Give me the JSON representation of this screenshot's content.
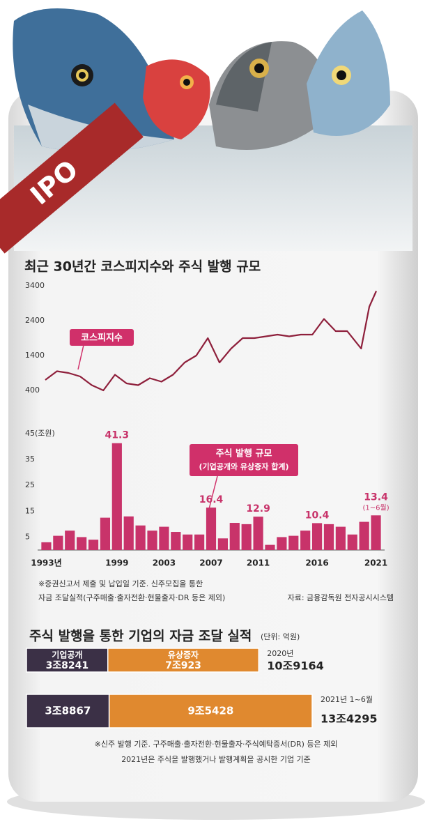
{
  "badge": "IPO",
  "title": "최근 30년간 코스피지수와 주식 발행 규모",
  "chart_data": [
    {
      "type": "line",
      "label": "코스피지수",
      "color": "#8e1f3b",
      "x": [
        1993,
        1994,
        1995,
        1996,
        1997,
        1998,
        1999,
        2000,
        2001,
        2002,
        2003,
        2004,
        2005,
        2006,
        2007,
        2008,
        2009,
        2010,
        2011,
        2012,
        2013,
        2014,
        2015,
        2016,
        2017,
        2018,
        2019,
        2020.2,
        2020.9,
        2021.5
      ],
      "values": [
        700,
        950,
        900,
        800,
        550,
        400,
        850,
        600,
        550,
        750,
        650,
        850,
        1200,
        1400,
        1900,
        1200,
        1600,
        1900,
        1900,
        1950,
        2000,
        1950,
        2000,
        2000,
        2450,
        2100,
        2100,
        1600,
        2800,
        3250
      ],
      "xlim": [
        1993,
        2021.5
      ],
      "ylim": [
        400,
        3400
      ],
      "yticks": [
        400,
        1400,
        2400,
        3400
      ]
    },
    {
      "type": "bar",
      "color": "#c8336a",
      "categories": [
        "1993년",
        null,
        null,
        null,
        null,
        null,
        "1999",
        null,
        null,
        null,
        "2003",
        null,
        null,
        null,
        "2007",
        null,
        null,
        null,
        "2011",
        null,
        null,
        null,
        null,
        "2016",
        null,
        null,
        null,
        null,
        "2021"
      ],
      "values": [
        3,
        5.5,
        7.5,
        5,
        4,
        12.5,
        41.3,
        13,
        9.5,
        7.5,
        9,
        7,
        6,
        6,
        16.4,
        4.5,
        10.5,
        10,
        12.9,
        2,
        5,
        5.5,
        7.5,
        10.4,
        10,
        9,
        6,
        10.9,
        13.4
      ],
      "value_labels": [
        null,
        null,
        null,
        null,
        null,
        null,
        "41.3",
        null,
        null,
        null,
        null,
        null,
        null,
        null,
        "16.4",
        null,
        null,
        null,
        "12.9",
        null,
        null,
        null,
        null,
        "10.4",
        null,
        null,
        null,
        null,
        "13.4"
      ],
      "annotation": "(1~6월)",
      "legend_title": "주식 발행 규모",
      "legend_subtitle": "(기업공개와 유상증자 합계)",
      "ylim": [
        0,
        45
      ],
      "yticks": [
        5,
        15,
        25,
        35,
        {
          "value": 45,
          "label": "45(조원)"
        }
      ]
    },
    {
      "type": "stacked-hbar",
      "title": "주식 발행을 통한 기업의 자금 조달 실적",
      "unit": "(단위: 억원)",
      "categories": [
        "2020년",
        "2021년 1~6월"
      ],
      "series": [
        {
          "name": "기업공개",
          "color": "#3b3046",
          "values": [
            38241,
            38867
          ],
          "value_labels": [
            "3조8241",
            "3조8867"
          ]
        },
        {
          "name": "유상증자",
          "color": "#e0892f",
          "values": [
            70923,
            95428
          ],
          "value_labels": [
            "7조923",
            "9조5428"
          ]
        }
      ],
      "totals": [
        109164,
        134295
      ],
      "total_labels": [
        "10조9164",
        "13조4295"
      ]
    }
  ],
  "notes": [
    "※증권신고서 제출 및 납입일 기준. 신주모집을 통한",
    "자금 조달실적(구주매출·출자전환·현물출자·DR 등은 제외)"
  ],
  "source": "자료: 금융감독원 전자공시시스템",
  "footnotes": [
    "※신주 발행 기준. 구주매출·출자전환·현물출자·주식예탁증서(DR) 등은 제외",
    "2021년은 주식을 발행했거나 발행계획을 공시한 기업 기준"
  ]
}
